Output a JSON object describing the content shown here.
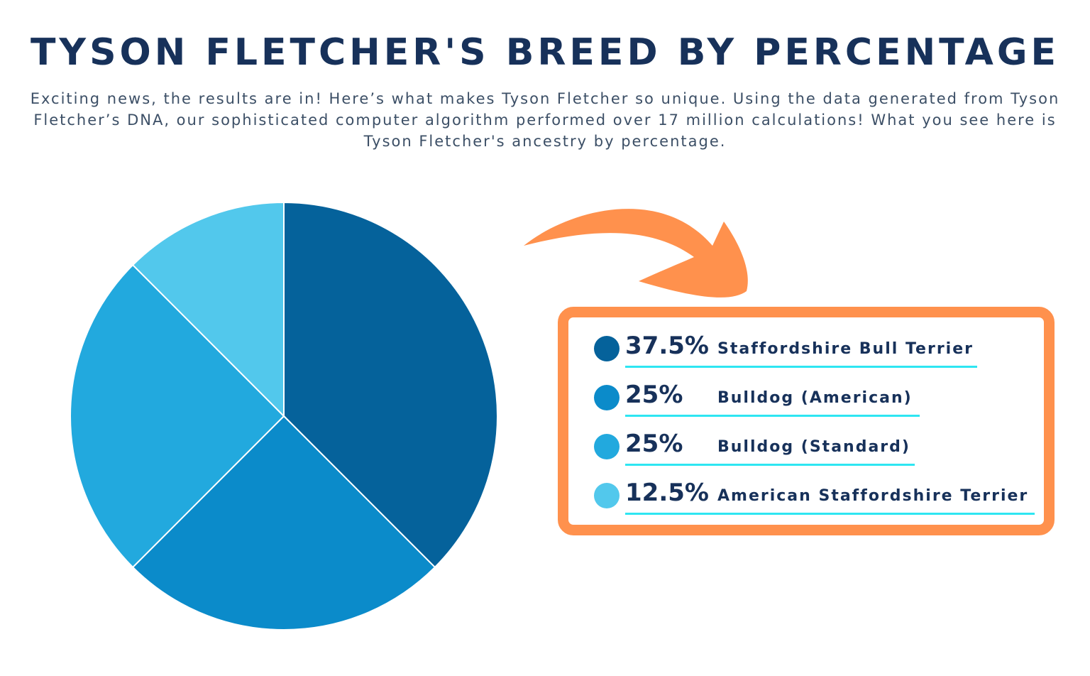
{
  "title": "TYSON FLETCHER'S BREED BY PERCENTAGE",
  "subtitle": "Exciting news, the results are in! Here’s what makes Tyson Fletcher so unique. Using the data generated from Tyson Fletcher’s DNA, our sophisticated computer algorithm performed over 17 million calculations! What you see here is Tyson Fletcher's ancestry by percentage.",
  "colors": {
    "title": "#17315a",
    "accent_orange": "#ff914d",
    "underline": "#2ee6f2"
  },
  "chart_data": {
    "type": "pie",
    "title": "TYSON FLETCHER'S BREED BY PERCENTAGE",
    "start_angle": "top, clockwise",
    "legend_position": "right",
    "series": [
      {
        "name": "Staffordshire Bull Terrier",
        "label": "37.5%",
        "value": 37.5,
        "color": "#05629b"
      },
      {
        "name": "Bulldog (American)",
        "label": "25%",
        "value": 25,
        "color": "#0b8bca"
      },
      {
        "name": "Bulldog (Standard)",
        "label": "25%",
        "value": 25,
        "color": "#22a9de"
      },
      {
        "name": "American Staffordshire Terrier",
        "label": "12.5%",
        "value": 12.5,
        "color": "#52c8ec"
      }
    ]
  }
}
